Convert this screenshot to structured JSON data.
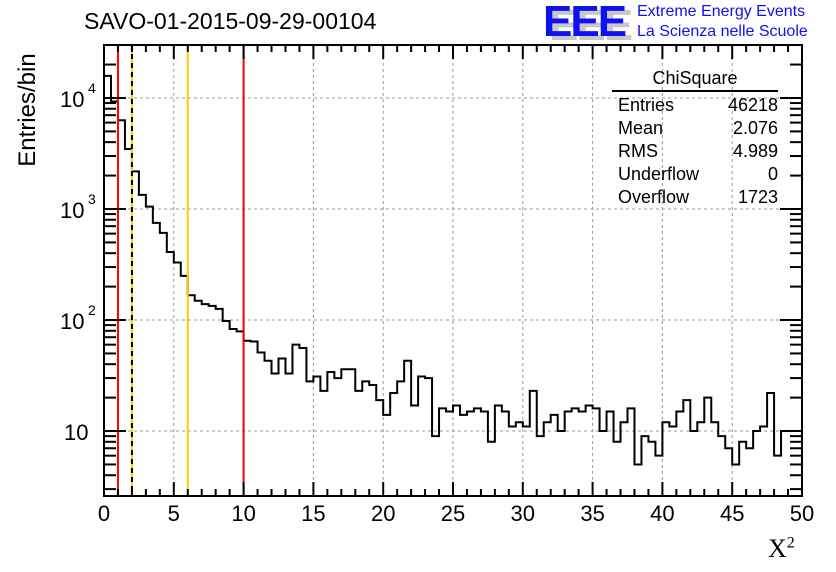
{
  "header": {
    "title": "SAVO-01-2015-09-29-00104",
    "logo_text": "EEE",
    "logo_line1": "Extreme Energy Events",
    "logo_line2": "La Scienza nelle Scuole"
  },
  "stats": {
    "name": "ChiSquare",
    "rows": [
      {
        "label": "Entries",
        "value": "46218"
      },
      {
        "label": "Mean",
        "value": "2.076"
      },
      {
        "label": "RMS",
        "value": "4.989"
      },
      {
        "label": "Underflow",
        "value": "0"
      },
      {
        "label": "Overflow",
        "value": "1723"
      }
    ]
  },
  "chart_data": {
    "type": "histogram",
    "title": "SAVO-01-2015-09-29-00104",
    "xlabel": "X",
    "xlabel_sup": "2",
    "ylabel": "Entries/bin",
    "xlim": [
      0,
      50
    ],
    "ylim": [
      2.6,
      30000
    ],
    "yscale": "log",
    "grid": true,
    "bin_width": 0.5,
    "x_ticks": [
      "0",
      "5",
      "10",
      "15",
      "20",
      "25",
      "30",
      "35",
      "40",
      "45",
      "50"
    ],
    "y_ticks": [
      {
        "value": 10,
        "label": "10"
      },
      {
        "value": 100,
        "label": "10",
        "exp": "2"
      },
      {
        "value": 1000,
        "label": "10",
        "exp": "3"
      },
      {
        "value": 10000,
        "label": "10",
        "exp": "4"
      }
    ],
    "values": [
      15800,
      9300,
      6300,
      3470,
      2180,
      1340,
      1050,
      750,
      610,
      410,
      330,
      250,
      167,
      149,
      139,
      134,
      126,
      98,
      83,
      79,
      65,
      64,
      51,
      43,
      33,
      45,
      33,
      60,
      56,
      28,
      31,
      23,
      34,
      30,
      36,
      36,
      23,
      28,
      26,
      19,
      14,
      22,
      28,
      43,
      17,
      31,
      30,
      9,
      16,
      15,
      17,
      14,
      15,
      16,
      15,
      8,
      17,
      15,
      11,
      12,
      11,
      23,
      9,
      12,
      14,
      10,
      15,
      16,
      15,
      17,
      16,
      10,
      15,
      8,
      12,
      16,
      5,
      9,
      8,
      6,
      12,
      11,
      15,
      19,
      10,
      12,
      20,
      12,
      9,
      7,
      5,
      8,
      7,
      10,
      11,
      22,
      6,
      10,
      10,
      10
    ],
    "vertical_lines": [
      {
        "x": 1,
        "color": "#ff0000",
        "style": "solid"
      },
      {
        "x": 2,
        "color": "#ffcc00",
        "style": "solid"
      },
      {
        "x": 2,
        "color": "#000000",
        "style": "dashed"
      },
      {
        "x": 6,
        "color": "#ffcc00",
        "style": "solid"
      },
      {
        "x": 10,
        "color": "#ff0000",
        "style": "solid"
      }
    ]
  }
}
